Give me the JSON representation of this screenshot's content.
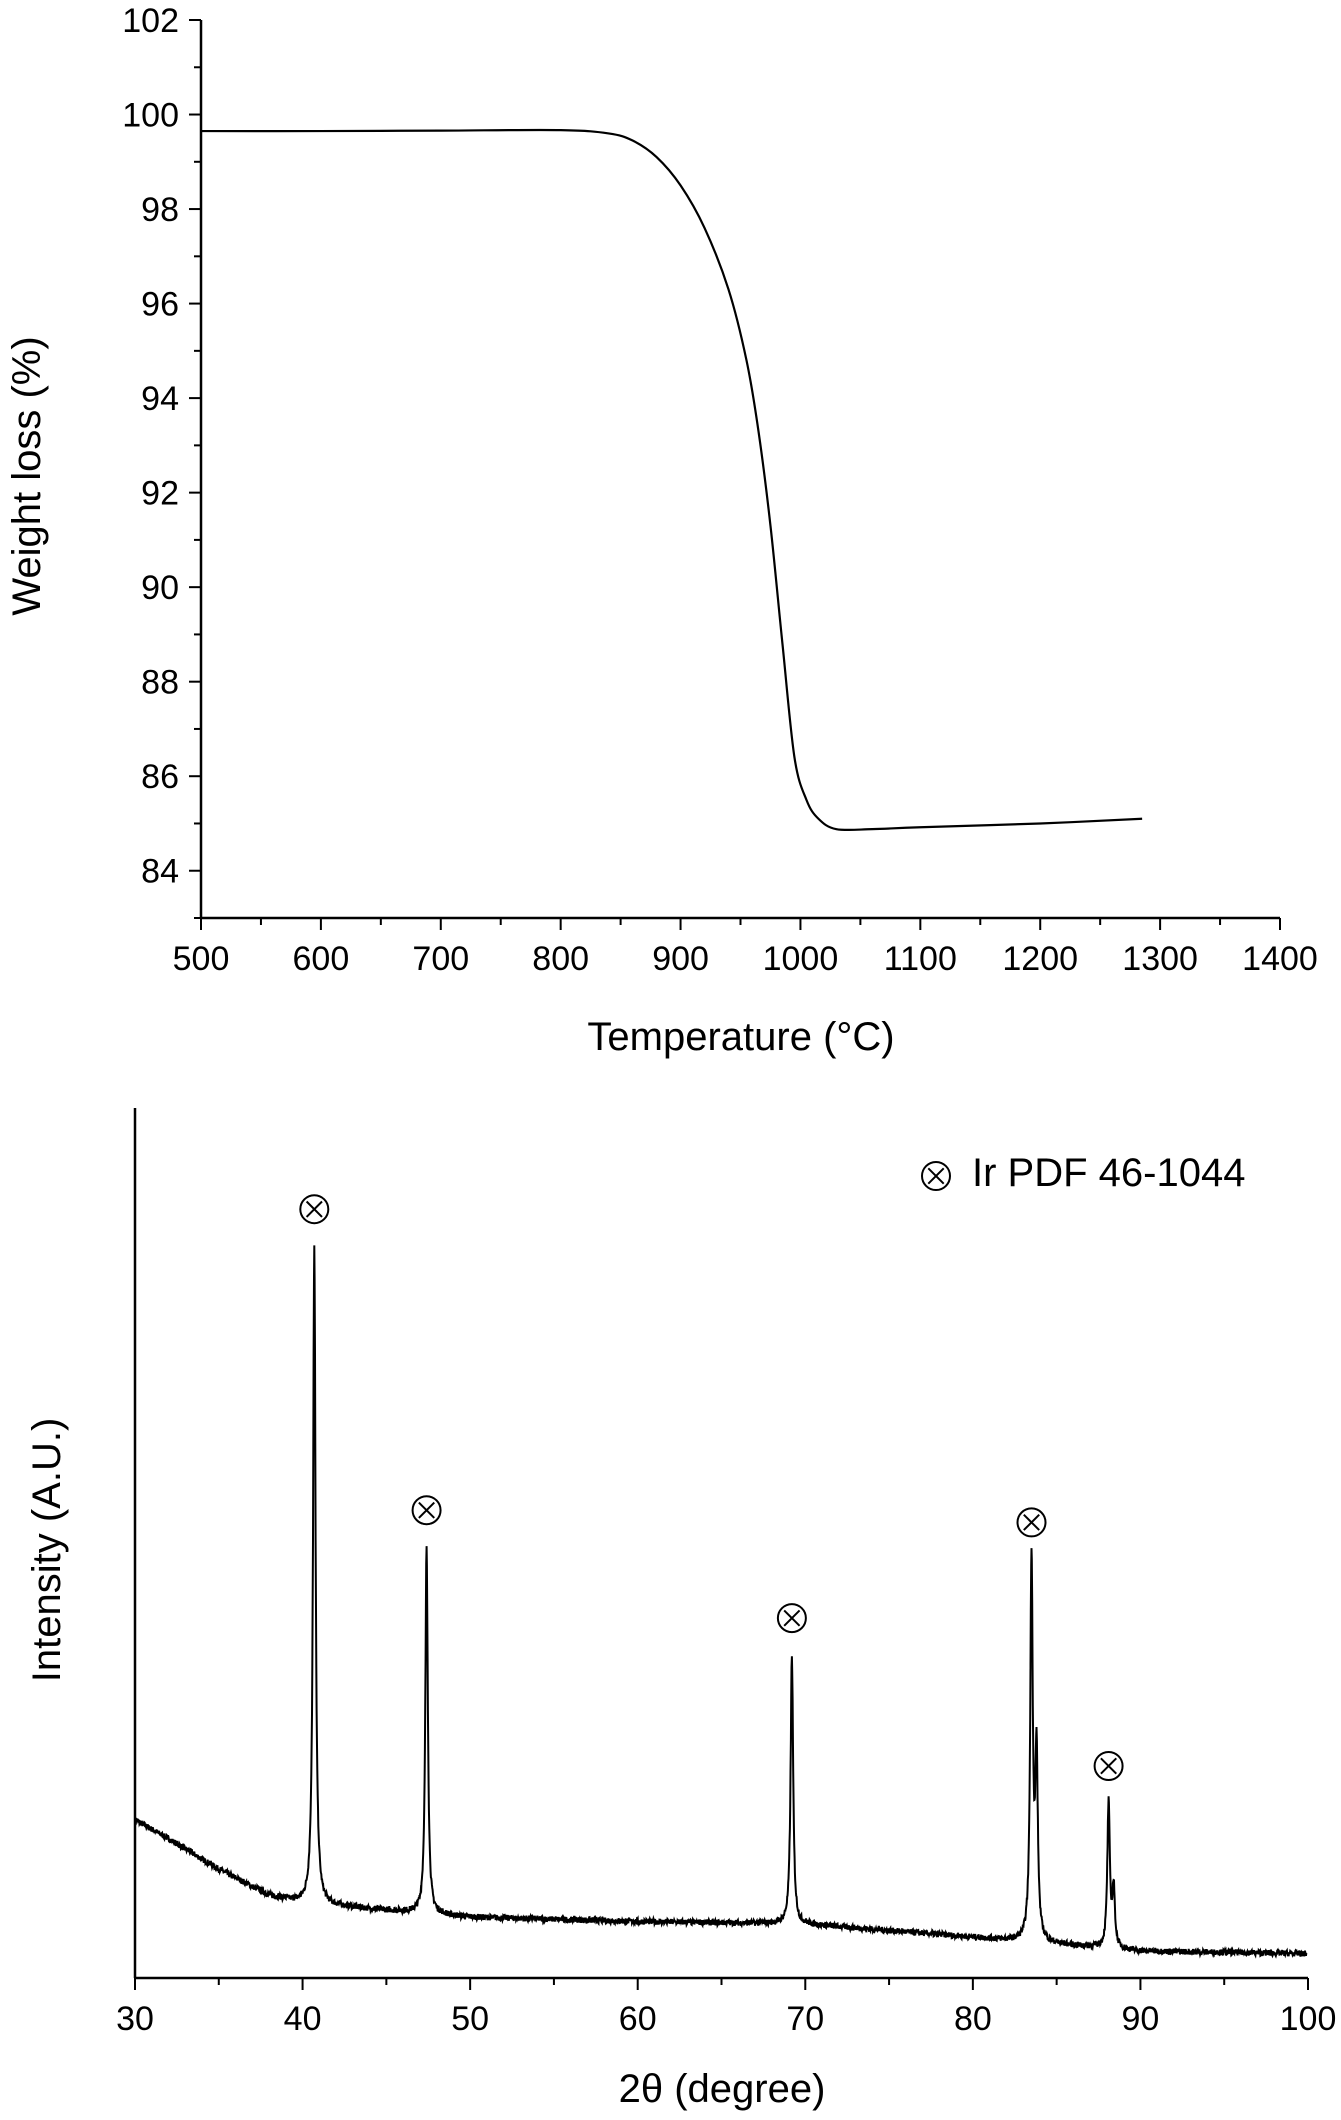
{
  "chart_data": [
    {
      "type": "line",
      "xlabel": "Temperature (°C)",
      "ylabel": "Weight loss (%)",
      "xlim": [
        500,
        1400
      ],
      "ylim": [
        83,
        102
      ],
      "xticks": [
        "500",
        "600",
        "700",
        "800",
        "900",
        "1000",
        "1100",
        "1200",
        "1300",
        "1400"
      ],
      "yticks": [
        "84",
        "86",
        "88",
        "90",
        "92",
        "94",
        "96",
        "98",
        "100",
        "102"
      ],
      "grid": false,
      "series": [
        {
          "x": [
            500,
            600,
            700,
            800,
            840,
            860,
            880,
            900,
            920,
            940,
            955,
            965,
            975,
            985,
            995,
            1005,
            1015,
            1030,
            1060,
            1100,
            1200,
            1285
          ],
          "y": [
            99.65,
            99.65,
            99.66,
            99.67,
            99.6,
            99.45,
            99.1,
            98.5,
            97.6,
            96.3,
            94.8,
            93.3,
            91.3,
            88.8,
            86.4,
            85.5,
            85.1,
            84.88,
            84.88,
            84.92,
            85.0,
            85.1
          ]
        }
      ],
      "color": "#000000"
    },
    {
      "type": "line",
      "xlabel": "2θ (degree)",
      "ylabel": "Intensity (A.U.)",
      "xlim": [
        30,
        100
      ],
      "ylim": [
        0,
        100
      ],
      "xticks": [
        "30",
        "40",
        "50",
        "60",
        "70",
        "80",
        "90",
        "100"
      ],
      "y_ticks_shown": false,
      "grid": false,
      "legend": {
        "position": "top-right",
        "marker": "circled-x",
        "label": "Ir PDF 46-1044"
      },
      "baseline": {
        "x": [
          30,
          32,
          35,
          38,
          40,
          45,
          50,
          60,
          70,
          80,
          90,
          100
        ],
        "y": [
          18.2,
          16,
          12.5,
          9.5,
          8.6,
          7.8,
          7.0,
          6.5,
          6.2,
          4.7,
          3.1,
          2.8
        ]
      },
      "peaks": [
        {
          "two_theta": 40.7,
          "intensity": 84,
          "marked": true
        },
        {
          "two_theta": 47.4,
          "intensity": 49.4,
          "marked": true
        },
        {
          "two_theta": 69.2,
          "intensity": 37,
          "marked": true
        },
        {
          "two_theta": 83.5,
          "intensity": 48,
          "marked": true
        },
        {
          "two_theta": 83.8,
          "intensity": 25,
          "marked": false
        },
        {
          "two_theta": 88.1,
          "intensity": 20,
          "marked": true
        },
        {
          "two_theta": 88.4,
          "intensity": 10,
          "marked": false
        }
      ],
      "color": "#000000"
    }
  ]
}
